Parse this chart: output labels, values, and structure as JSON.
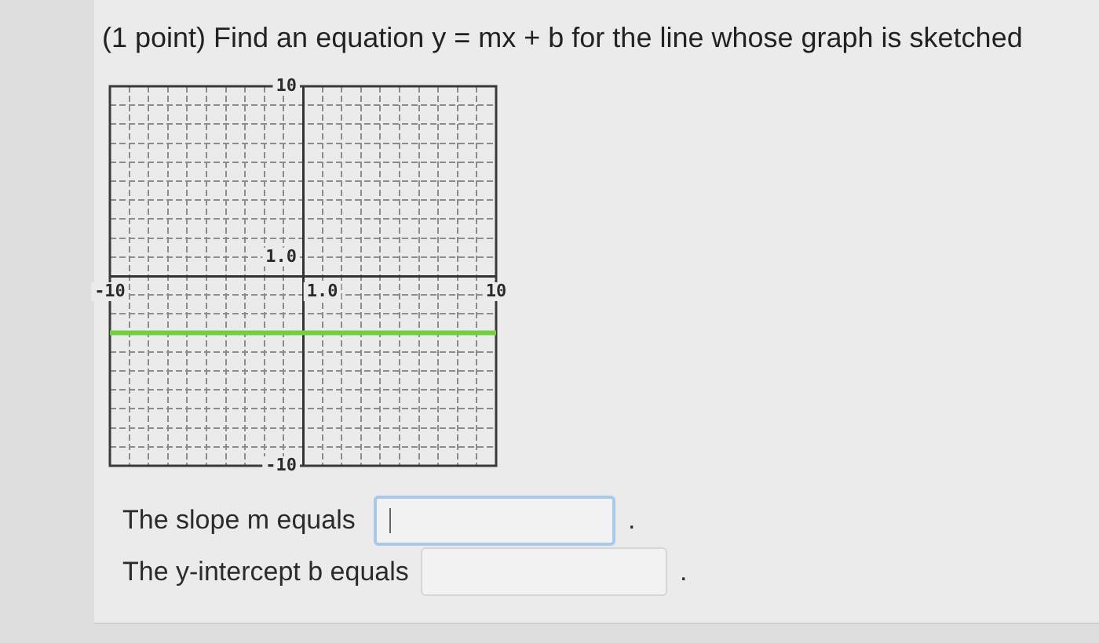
{
  "chart_data": {
    "type": "line",
    "title": "(1 point) Find an equation y = mx + b for the line whose graph is sketched",
    "annotations": [
      "The slope m equals",
      ".",
      "The y-intercept b equals",
      "."
    ],
    "x": [
      -10,
      10
    ],
    "series": [
      {
        "color": "#74cf3c",
        "values": [
          -3,
          -3
        ]
      }
    ],
    "xlim": [
      -10,
      10
    ],
    "ylim": [
      -10,
      10
    ],
    "xticks": [
      -10,
      {
        "value": -9,
        "label": null
      },
      {
        "value": -8,
        "label": null
      },
      {
        "value": -7,
        "label": null
      },
      {
        "value": -6,
        "label": null
      },
      {
        "value": -5,
        "label": null
      },
      {
        "value": -4,
        "label": null
      },
      {
        "value": -3,
        "label": null
      },
      {
        "value": -2,
        "label": null
      },
      {
        "value": -1,
        "label": null
      },
      {
        "value": 0,
        "label": null
      },
      {
        "value": 1,
        "label": "1.0"
      },
      {
        "value": 2,
        "label": null
      },
      {
        "value": 3,
        "label": null
      },
      {
        "value": 4,
        "label": null
      },
      {
        "value": 5,
        "label": null
      },
      {
        "value": 6,
        "label": null
      },
      {
        "value": 7,
        "label": null
      },
      {
        "value": 8,
        "label": null
      },
      {
        "value": 9,
        "label": null
      },
      10
    ],
    "yticks": [
      -10,
      {
        "value": -9,
        "label": null
      },
      {
        "value": -8,
        "label": null
      },
      {
        "value": -7,
        "label": null
      },
      {
        "value": -6,
        "label": null
      },
      {
        "value": -5,
        "label": null
      },
      {
        "value": -4,
        "label": null
      },
      {
        "value": -3,
        "label": null
      },
      {
        "value": -2,
        "label": null
      },
      {
        "value": -1,
        "label": null
      },
      {
        "value": 0,
        "label": null
      },
      {
        "value": 1,
        "label": "1.0"
      },
      {
        "value": 2,
        "label": null
      },
      {
        "value": 3,
        "label": null
      },
      {
        "value": 4,
        "label": null
      },
      {
        "value": 5,
        "label": null
      },
      {
        "value": 6,
        "label": null
      },
      {
        "value": 7,
        "label": null
      },
      {
        "value": 8,
        "label": null
      },
      {
        "value": 9,
        "label": null
      },
      10
    ],
    "grid": true,
    "legend": false,
    "marker": "none"
  }
}
